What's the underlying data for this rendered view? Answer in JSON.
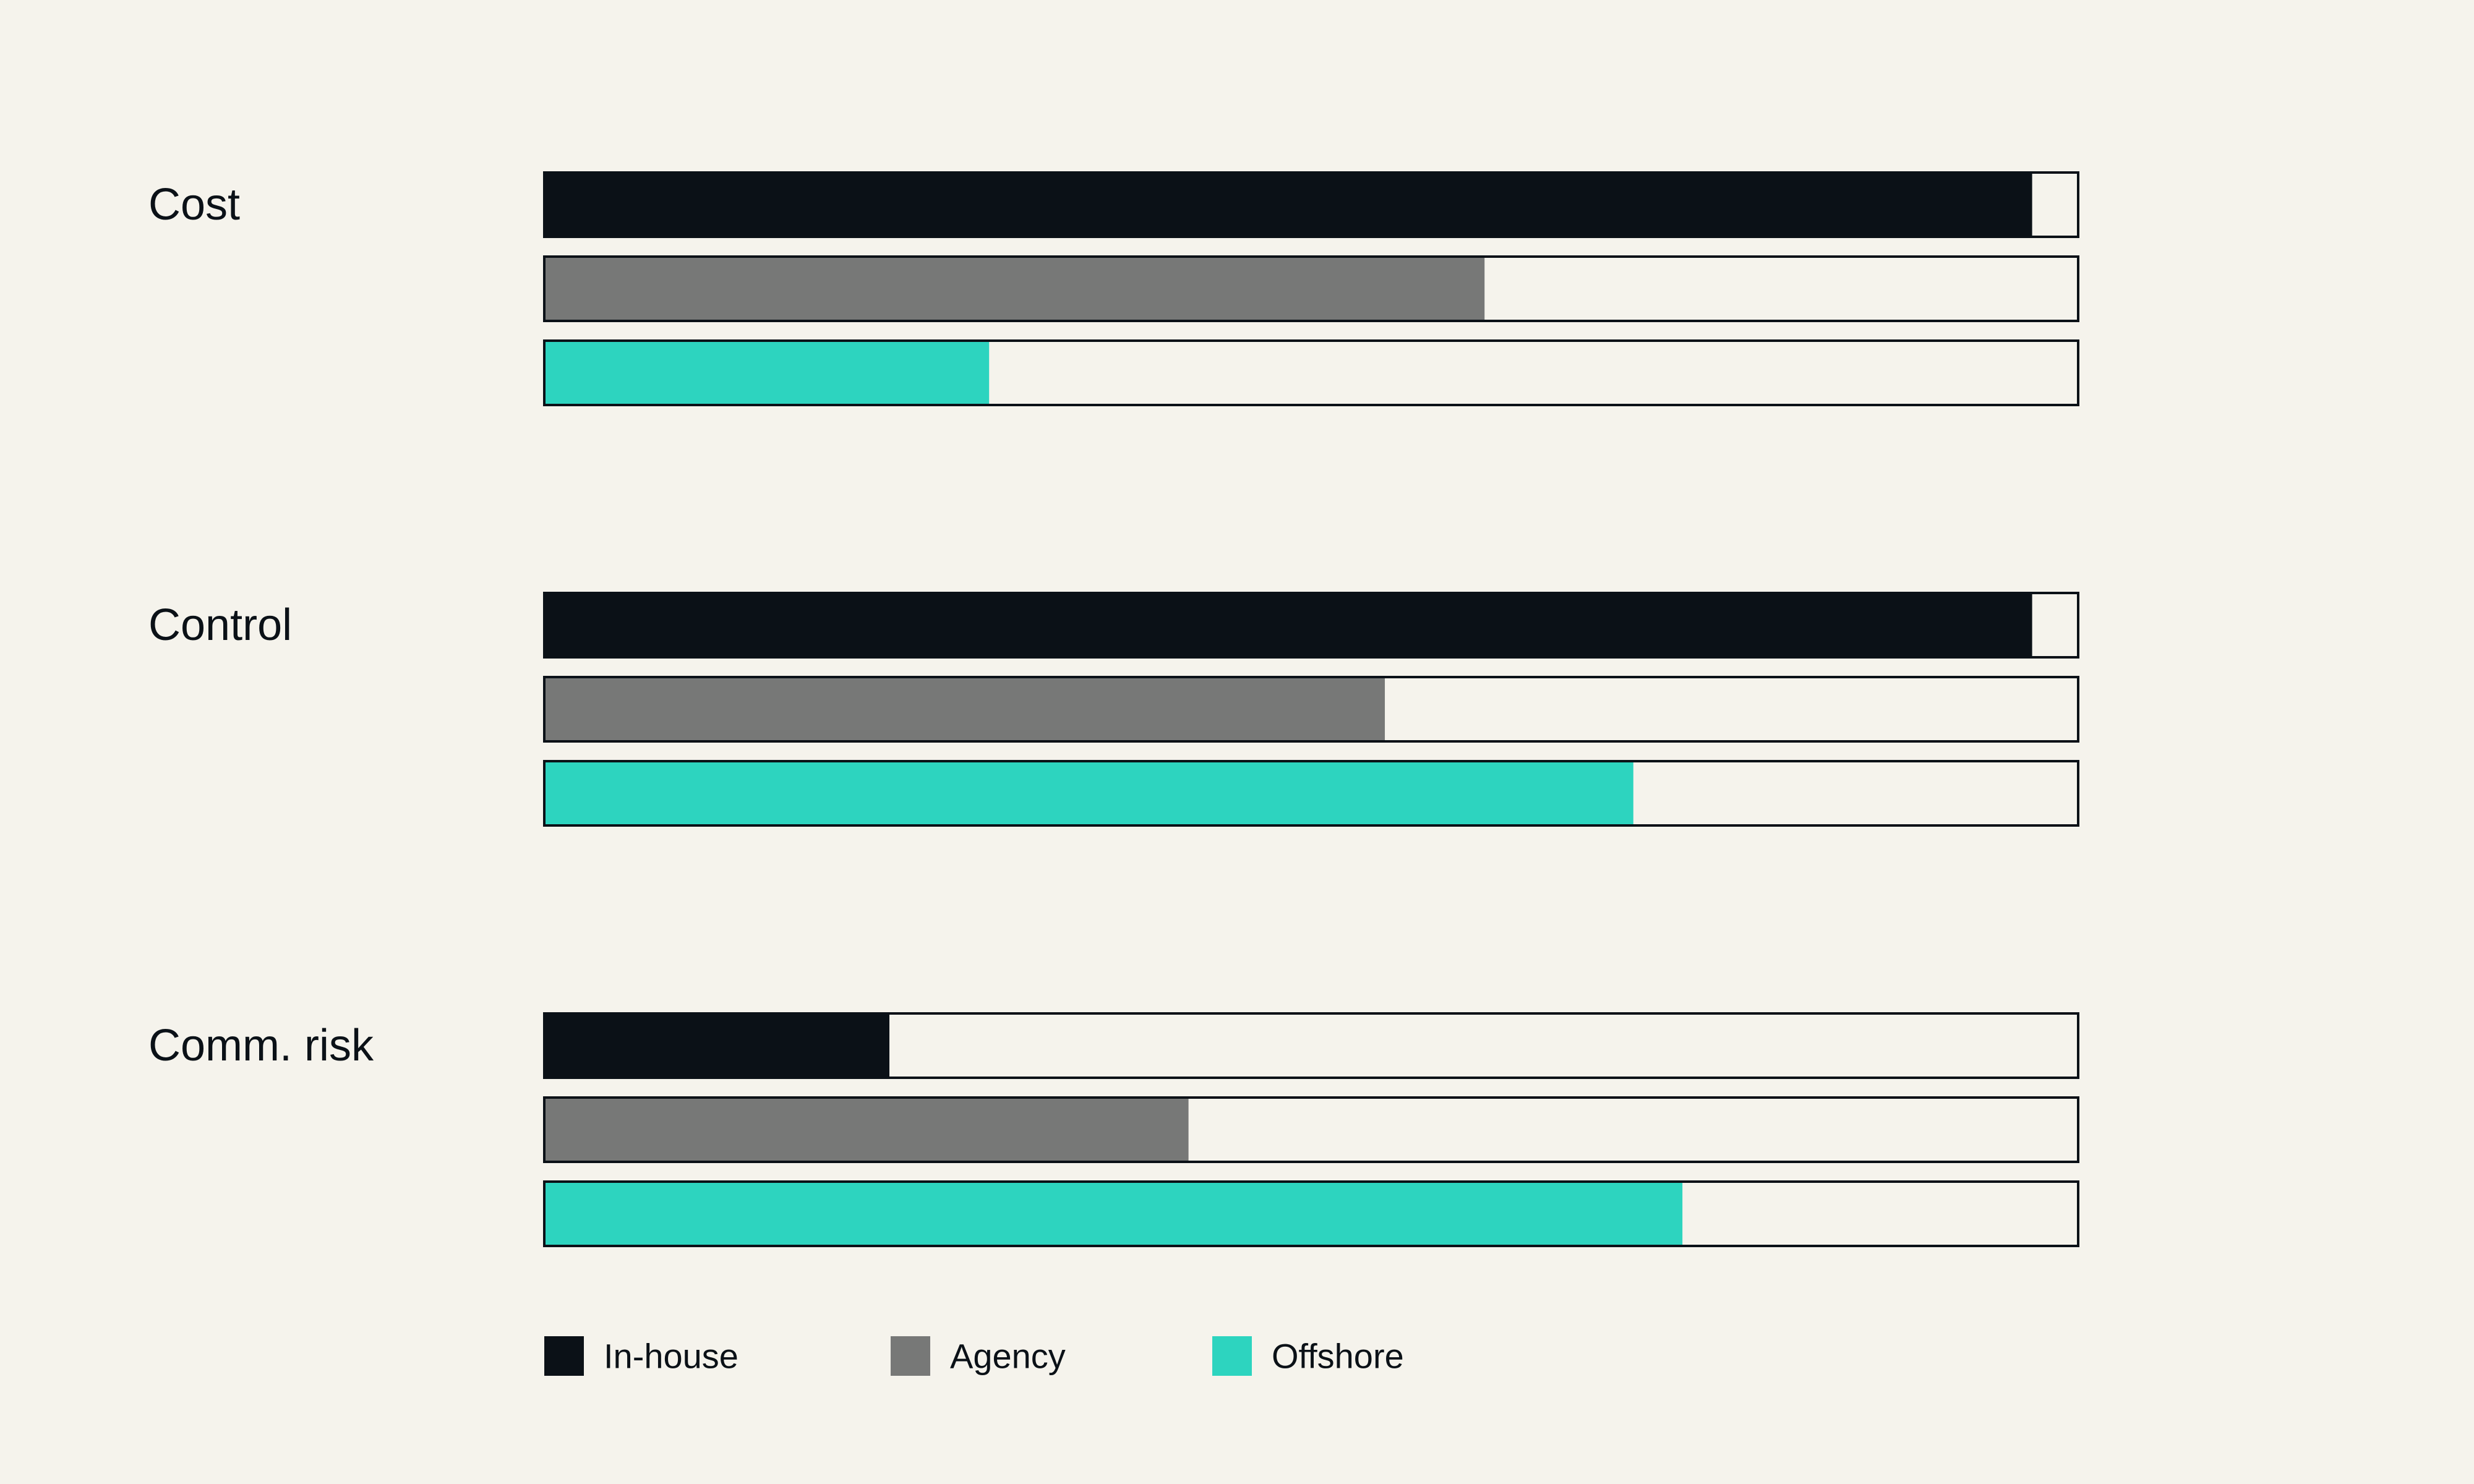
{
  "chart_data": {
    "type": "bar",
    "orientation": "horizontal",
    "categories": [
      "Cost",
      "Control",
      "Comm. risk"
    ],
    "series": [
      {
        "name": "In-house",
        "color": "#0b1117",
        "values": [
          0.97,
          0.97,
          0.225
        ]
      },
      {
        "name": "Agency",
        "color": "#777877",
        "values": [
          0.613,
          0.548,
          0.42
        ]
      },
      {
        "name": "Offshore",
        "color": "#2dd4bf",
        "values": [
          0.29,
          0.71,
          0.742
        ]
      }
    ],
    "xlim": [
      0,
      1
    ],
    "grid": false,
    "legend": "bottom"
  },
  "colors": {
    "background": "#f5f3ec",
    "track_fill": "#f5f3ec",
    "track_stroke": "#0b1117",
    "text": "#0b1117"
  }
}
